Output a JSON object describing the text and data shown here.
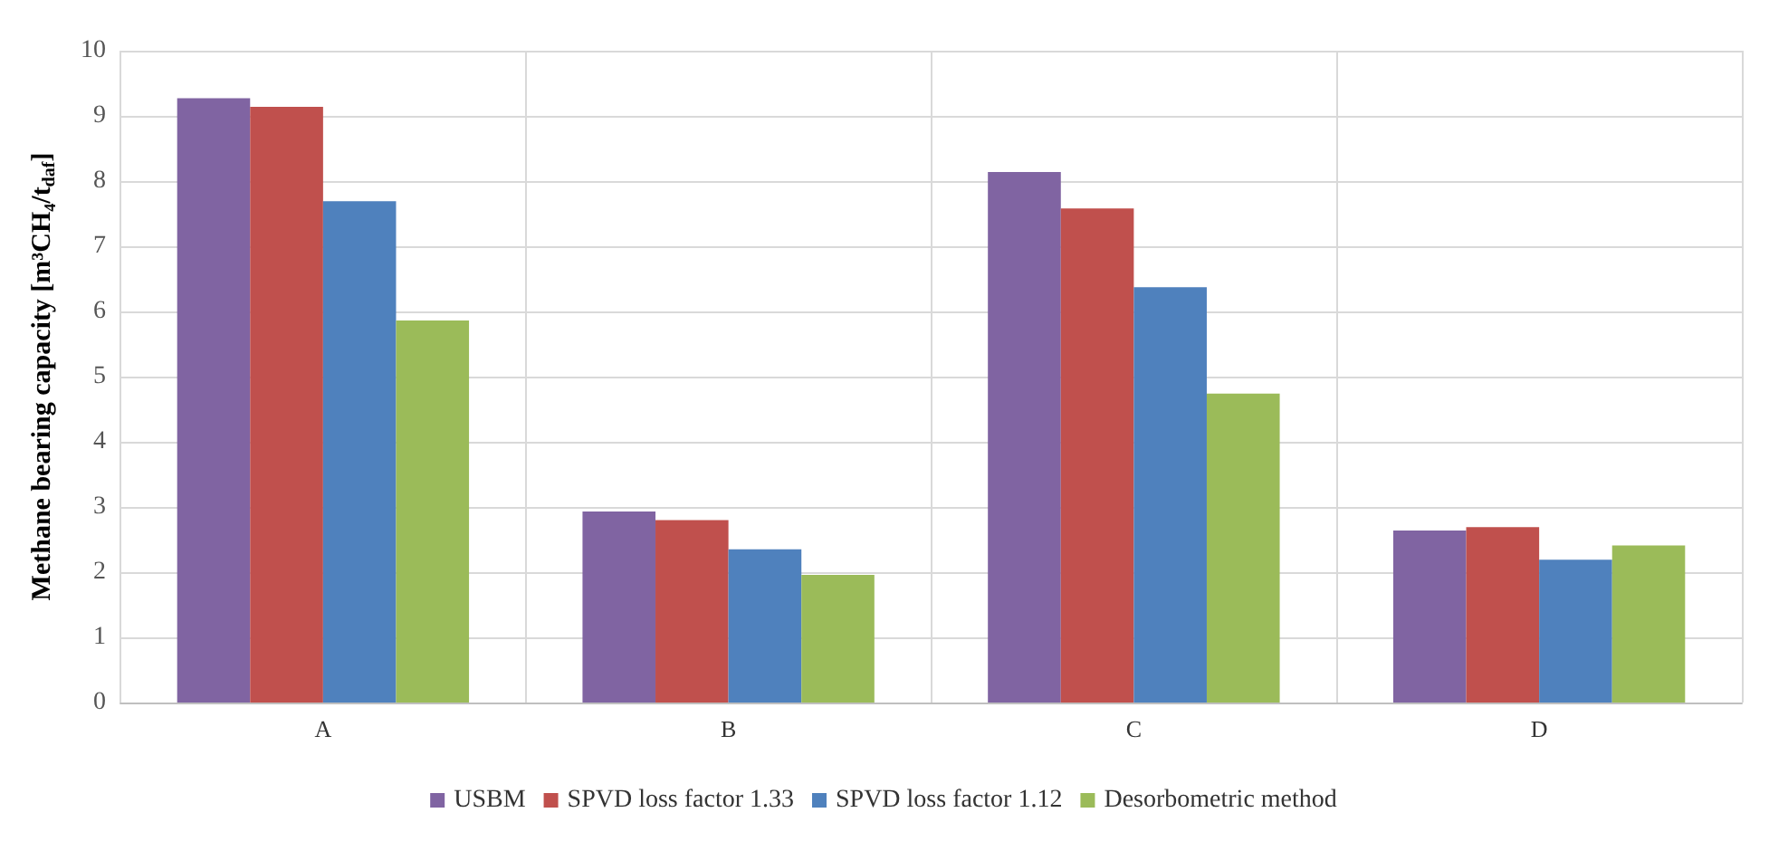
{
  "chart_data": {
    "type": "bar",
    "ylabel": "Methane bearing capacity [m³CH₄/t$_{daf}$]",
    "categories": [
      "A",
      "B",
      "C",
      "D"
    ],
    "series": [
      {
        "name": "USBM",
        "color": "#8064a2",
        "values": [
          9.27,
          2.93,
          8.14,
          2.64
        ]
      },
      {
        "name": "SPVD loss factor 1.33",
        "color": "#c0504d",
        "values": [
          9.14,
          2.8,
          7.58,
          2.69
        ]
      },
      {
        "name": "SPVD loss factor 1.12",
        "color": "#4f81bd",
        "values": [
          7.69,
          2.35,
          6.37,
          2.19
        ]
      },
      {
        "name": "Desorbometric method",
        "color": "#9bbb59",
        "values": [
          5.86,
          1.96,
          4.74,
          2.41
        ]
      }
    ],
    "ylim": [
      0,
      10
    ],
    "yticks": [
      0,
      1,
      2,
      3,
      4,
      5,
      6,
      7,
      8,
      9,
      10
    ],
    "grid": true,
    "legend": "bottom"
  }
}
